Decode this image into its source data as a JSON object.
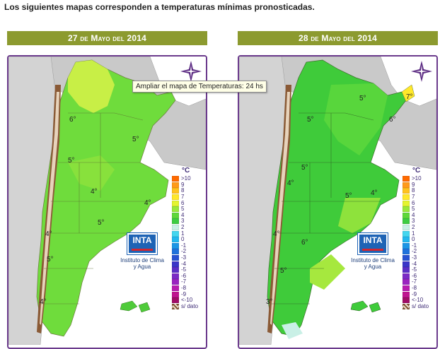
{
  "heading": "Los siguientes mapas corresponden a temperaturas mínimas pronosticadas.",
  "tooltip": "Ampliar el mapa de Temperaturas: 24 hs",
  "maps": [
    {
      "date": "27 de Mayo del 2014",
      "temp_labels": [
        "6°",
        "5°",
        "5°",
        "4°",
        "4°",
        "5°",
        "4°",
        "5°",
        "4°"
      ]
    },
    {
      "date": "28 de Mayo del 2014",
      "temp_labels": [
        "5°",
        "5°",
        "7°",
        "6°",
        "5°",
        "4°",
        "5°",
        "4°",
        "6°",
        "4°",
        "5°",
        "3°"
      ]
    }
  ],
  "legend": {
    "unit": "°C",
    "items": [
      {
        "label": ">10",
        "color": "#ff6a00"
      },
      {
        "label": "9",
        "color": "#ff9a1a"
      },
      {
        "label": "8",
        "color": "#ffc21e"
      },
      {
        "label": "7",
        "color": "#ffe82a"
      },
      {
        "label": "6",
        "color": "#e4f430"
      },
      {
        "label": "5",
        "color": "#9ae83a"
      },
      {
        "label": "4",
        "color": "#5ed83a"
      },
      {
        "label": "3",
        "color": "#3dcc42"
      },
      {
        "label": "2",
        "color": "#c9f0e6"
      },
      {
        "label": "1",
        "color": "#44d6ef"
      },
      {
        "label": "0",
        "color": "#22b8ee"
      },
      {
        "label": "-1",
        "color": "#1c96e6"
      },
      {
        "label": "-2",
        "color": "#1f72dc"
      },
      {
        "label": "-3",
        "color": "#2752d2"
      },
      {
        "label": "-4",
        "color": "#3a36c8"
      },
      {
        "label": "-5",
        "color": "#5a2ec6"
      },
      {
        "label": "-6",
        "color": "#7b2bc6"
      },
      {
        "label": "-7",
        "color": "#9a24c0"
      },
      {
        "label": "-8",
        "color": "#b81cb0"
      },
      {
        "label": "-9",
        "color": "#c01490"
      },
      {
        "label": "<-10",
        "color": "#a00c66"
      },
      {
        "label": "s/ dato",
        "color": "#8a5a36"
      }
    ]
  },
  "logo": {
    "text": "INTA",
    "name": "Instituto de Clima y Agua"
  }
}
